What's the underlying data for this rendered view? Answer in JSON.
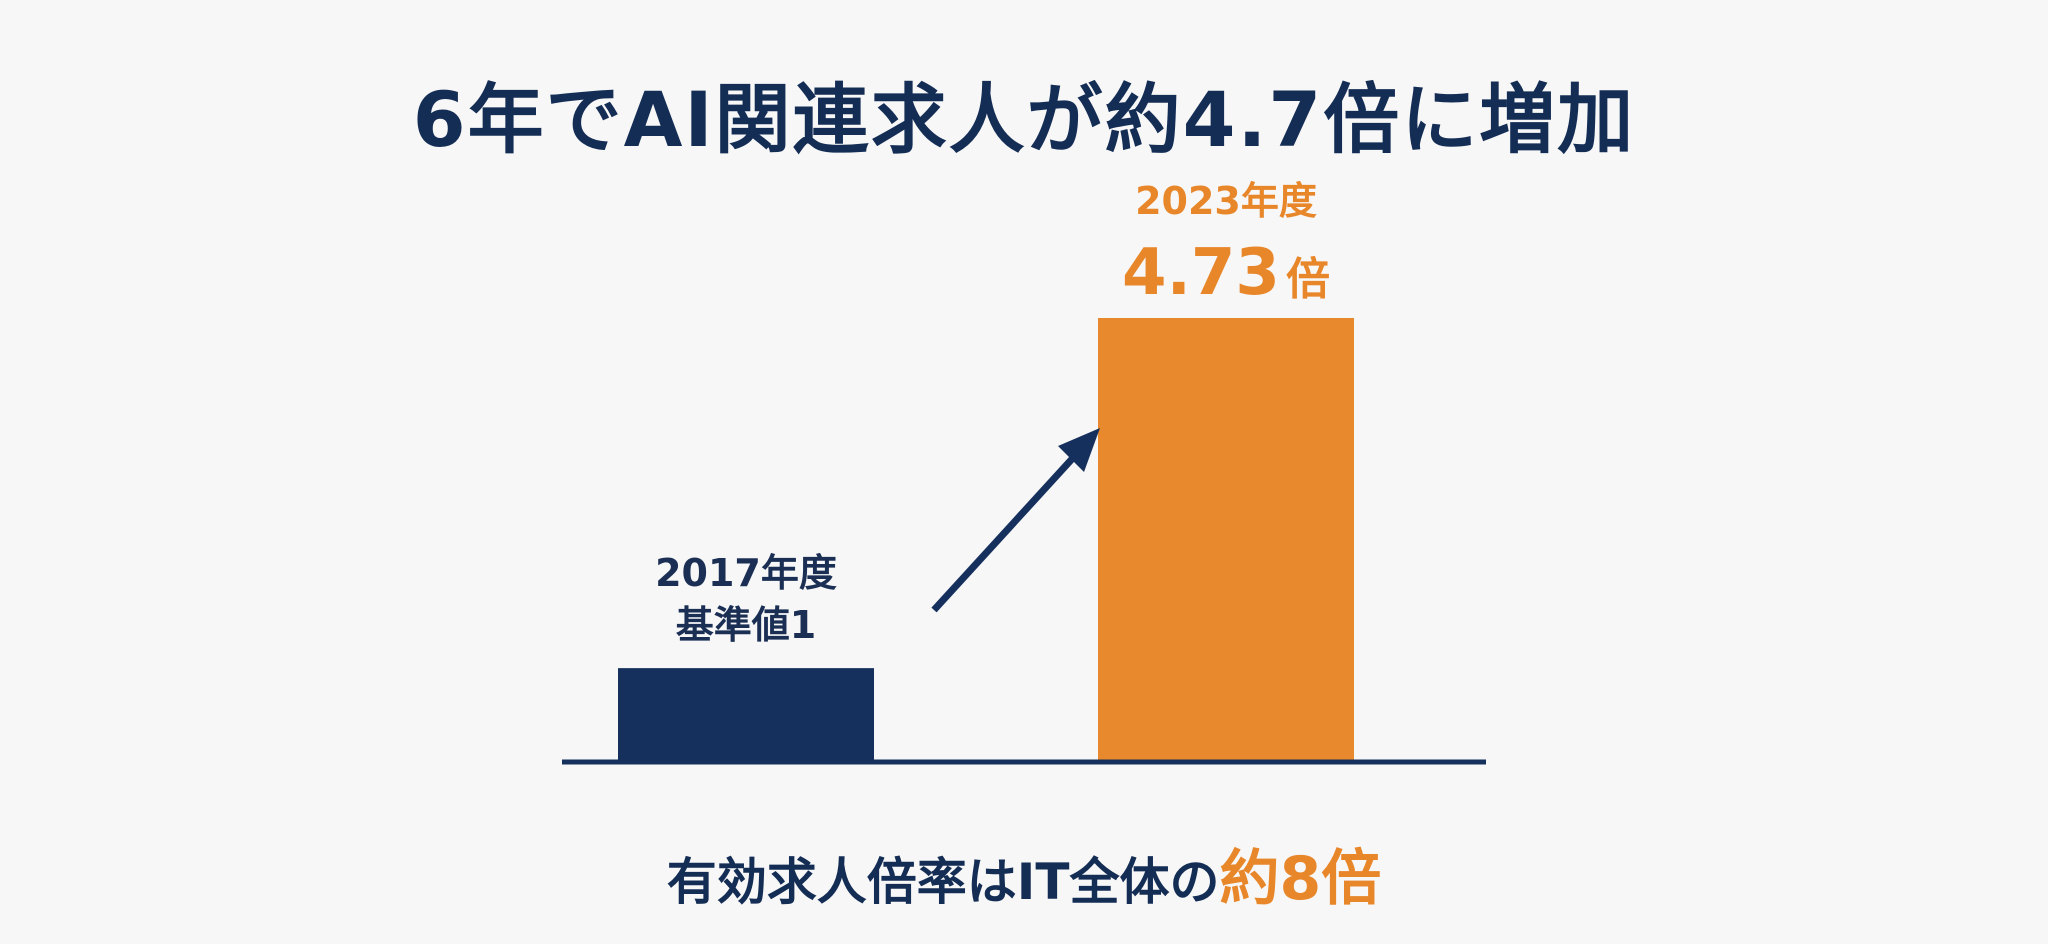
{
  "header": {
    "title": "6年でAI関連求人が約4.7倍に増加"
  },
  "chart_data": {
    "type": "bar",
    "categories": [
      "2017年度",
      "2023年度"
    ],
    "values": [
      1,
      4.73
    ],
    "ylim": [
      0,
      5
    ],
    "grid": false,
    "colors": [
      "#15305c",
      "#e8892e"
    ],
    "labels": [
      {
        "category": "2017年度",
        "sub": "基準値1"
      },
      {
        "category": "2023年度",
        "sub": "4.73",
        "unit": "倍"
      }
    ],
    "label_colors": [
      "#1b2f55",
      "#e8862a"
    ],
    "baseline_color": "#15305c",
    "arrow_color": "#15305c"
  },
  "footer": {
    "prefix": "有効求人倍率はIT全体の",
    "highlight": "約8倍"
  }
}
